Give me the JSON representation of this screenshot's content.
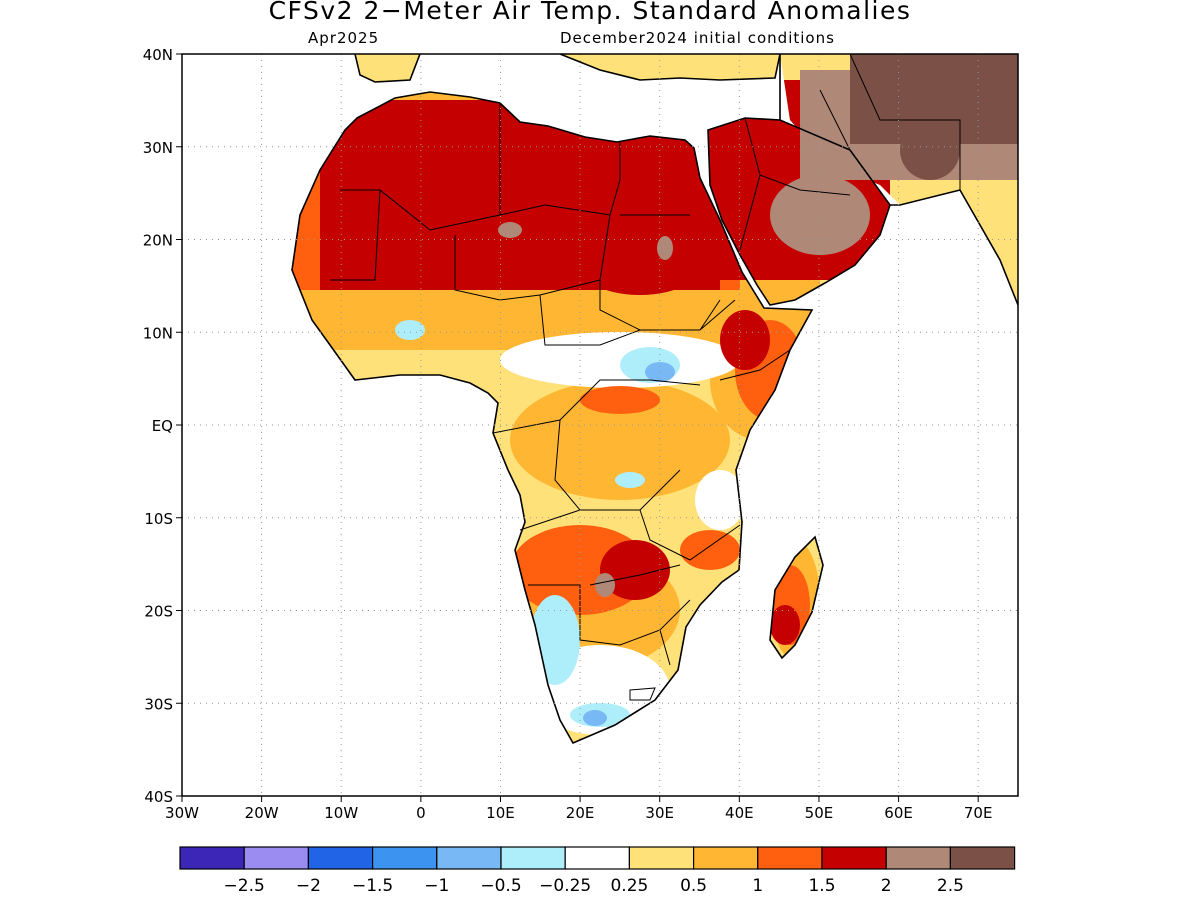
{
  "title": "CFSv2 2−Meter Air Temp. Standard Anomalies",
  "subtitle_left": "Apr2025",
  "subtitle_right": "December2024 initial conditions",
  "map": {
    "lon_range": [
      -30,
      75
    ],
    "lat_range": [
      -40,
      40
    ],
    "lat_ticks": [
      "40N",
      "30N",
      "20N",
      "10N",
      "EQ",
      "10S",
      "20S",
      "30S",
      "40S"
    ],
    "lon_ticks": [
      "30W",
      "20W",
      "10W",
      "0",
      "10E",
      "20E",
      "30E",
      "40E",
      "50E",
      "60E",
      "70E"
    ]
  },
  "colorbar": {
    "colors": [
      "#3b26b8",
      "#9b8cf2",
      "#2264e6",
      "#3d93f0",
      "#78b8f5",
      "#aeeefa",
      "#ffffff",
      "#ffe17a",
      "#ffb733",
      "#ff6010",
      "#c40000",
      "#b08878",
      "#7b5046"
    ],
    "labels": [
      "−2.5",
      "−2",
      "−1.5",
      "−1",
      "−0.5",
      "−0.25",
      "0.25",
      "0.5",
      "1",
      "1.5",
      "2",
      "2.5"
    ]
  }
}
